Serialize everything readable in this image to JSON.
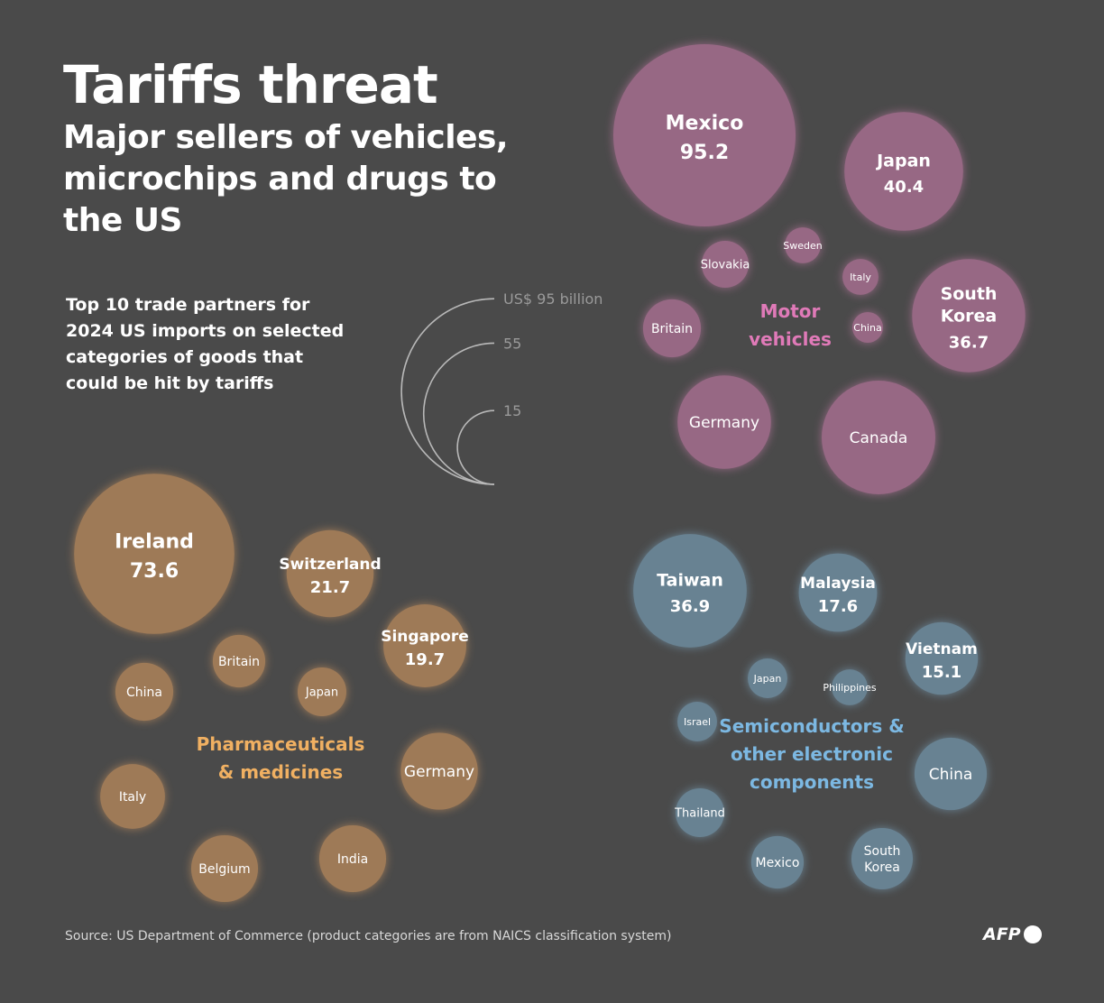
{
  "header": {
    "title": "Tariffs threat",
    "subtitle": "Major sellers of vehicles, microchips and drugs to the US",
    "intro": "Top 10 trade partners for 2024 US imports on selected categories of goods that could be hit by tariffs"
  },
  "footer": {
    "source": "Source: US Department of Commerce (product categories are from NAICS classification system)",
    "logo": "AFP"
  },
  "chart_data": {
    "type": "bubble",
    "unit": "US$ billion",
    "size_legend": [
      {
        "value": 95,
        "label": "US$ 95 billion"
      },
      {
        "value": 55,
        "label": "55"
      },
      {
        "value": 15,
        "label": "15"
      }
    ],
    "groups": [
      {
        "name": "Motor vehicles",
        "label_lines": [
          "Motor",
          "vehicles"
        ],
        "color": "#9c6a88",
        "label_color": "#e07ab8",
        "items": [
          {
            "name": "Mexico",
            "value": 95.2,
            "value_label": "95.2"
          },
          {
            "name": "Japan",
            "value": 40.4,
            "value_label": "40.4"
          },
          {
            "name": "South Korea",
            "lines": [
              "South",
              "Korea"
            ],
            "value": 36.7,
            "value_label": "36.7"
          },
          {
            "name": "Canada",
            "value": 37
          },
          {
            "name": "Germany",
            "value": 25
          },
          {
            "name": "Britain",
            "value": 9.6
          },
          {
            "name": "Slovakia",
            "value": 6.3
          },
          {
            "name": "Sweden",
            "value": 3.7
          },
          {
            "name": "Italy",
            "value": 3.7
          },
          {
            "name": "China",
            "value": 2.7
          }
        ]
      },
      {
        "name": "Pharmaceuticals & medicines",
        "label_lines": [
          "Pharmaceuticals",
          "& medicines"
        ],
        "color": "#a37d59",
        "label_color": "#f0b062",
        "items": [
          {
            "name": "Ireland",
            "value": 73.6,
            "value_label": "73.6"
          },
          {
            "name": "Switzerland",
            "value": 21.7,
            "value_label": "21.7"
          },
          {
            "name": "Singapore",
            "value": 19.7,
            "value_label": "19.7"
          },
          {
            "name": "Germany",
            "value": 17
          },
          {
            "name": "Belgium",
            "value": 12.8
          },
          {
            "name": "India",
            "value": 12.8
          },
          {
            "name": "Italy",
            "value": 12
          },
          {
            "name": "China",
            "value": 9.6
          },
          {
            "name": "Britain",
            "value": 7.9
          },
          {
            "name": "Japan",
            "value": 6.8
          }
        ]
      },
      {
        "name": "Semiconductors & other electronic components",
        "label_lines": [
          "Semiconductors &",
          "other electronic",
          "components"
        ],
        "color": "#6b8596",
        "label_color": "#7cb8e2",
        "items": [
          {
            "name": "Taiwan",
            "value": 36.9,
            "value_label": "36.9"
          },
          {
            "name": "Malaysia",
            "value": 17.6,
            "value_label": "17.6"
          },
          {
            "name": "Vietnam",
            "value": 15.1,
            "value_label": "15.1"
          },
          {
            "name": "China",
            "value": 15
          },
          {
            "name": "South Korea",
            "lines": [
              "South",
              "Korea"
            ],
            "value": 10.8
          },
          {
            "name": "Mexico",
            "value": 7.9
          },
          {
            "name": "Thailand",
            "value": 6.8
          },
          {
            "name": "Japan",
            "value": 4.5
          },
          {
            "name": "Israel",
            "value": 4.5
          },
          {
            "name": "Philippines",
            "value": 3.7
          }
        ]
      }
    ]
  }
}
